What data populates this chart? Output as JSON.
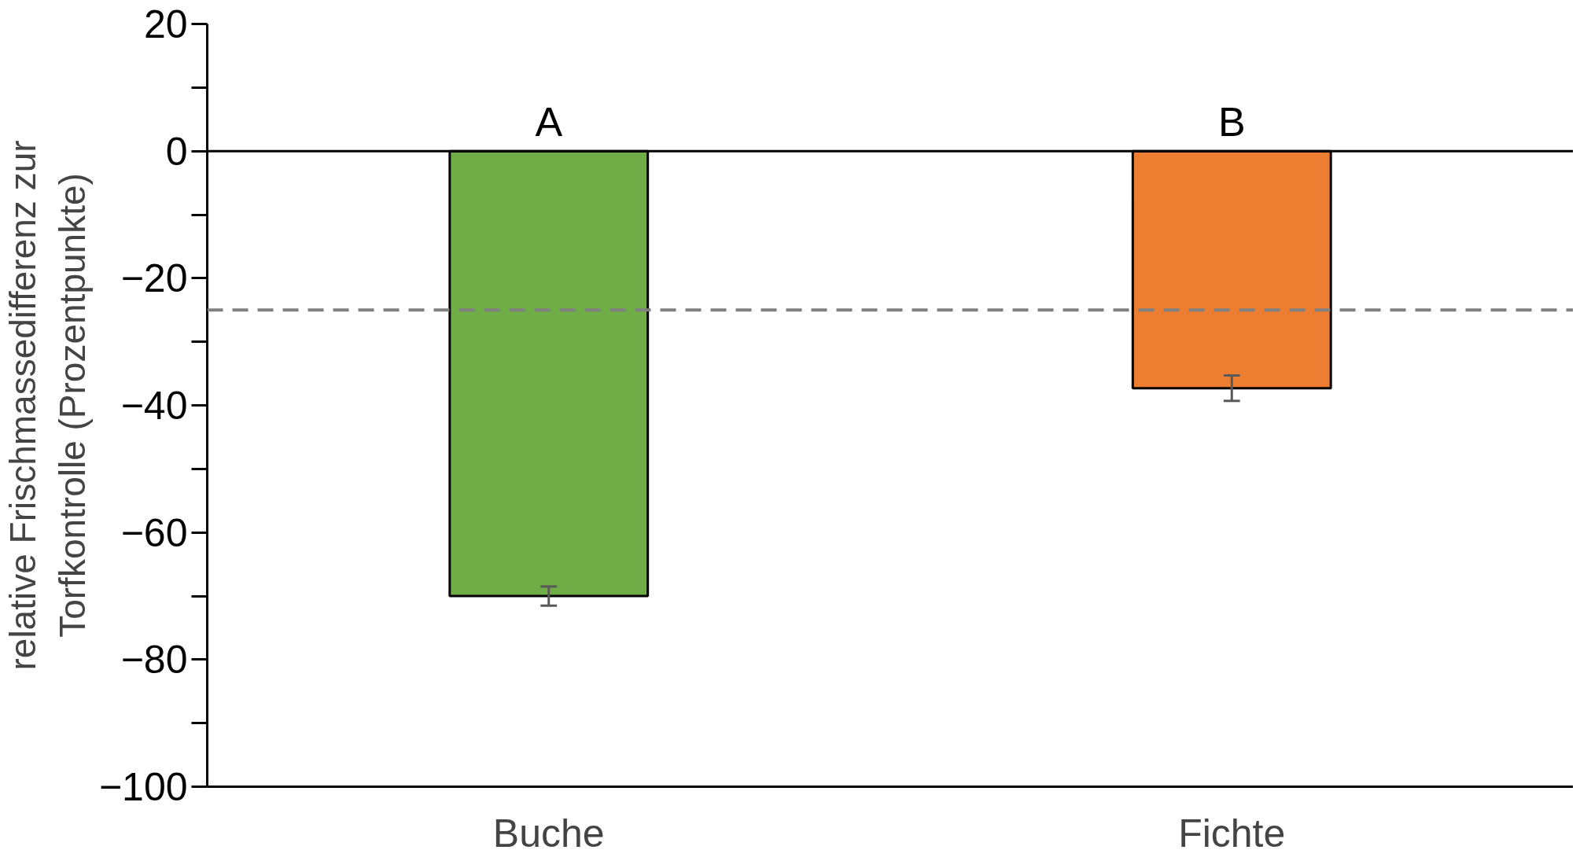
{
  "chart_data": {
    "type": "bar",
    "ylabel": "relative Frischmassedifferenz zur\nTorfkontrolle (Prozentpunkte)",
    "categories": [
      "Buche",
      "Fichte"
    ],
    "values": [
      -70,
      -37.3
    ],
    "colors": [
      "#70ad47",
      "#ed7d31"
    ],
    "errors": [
      1.5,
      2
    ],
    "ylim": [
      -100,
      20
    ],
    "yticks": [
      20,
      0,
      -20,
      -40,
      -60,
      -80,
      -100
    ],
    "ref_lines": [
      {
        "axis": "y",
        "value": 0,
        "color": "#000000",
        "line_style": "solid"
      },
      {
        "axis": "y",
        "value": -25,
        "color": "#808080",
        "line_style": "dashed"
      }
    ],
    "annotations": [
      {
        "text": "A",
        "x": "Buche",
        "y": 0
      },
      {
        "text": "B",
        "x": "Fichte",
        "y": 0
      }
    ],
    "grid": false
  }
}
